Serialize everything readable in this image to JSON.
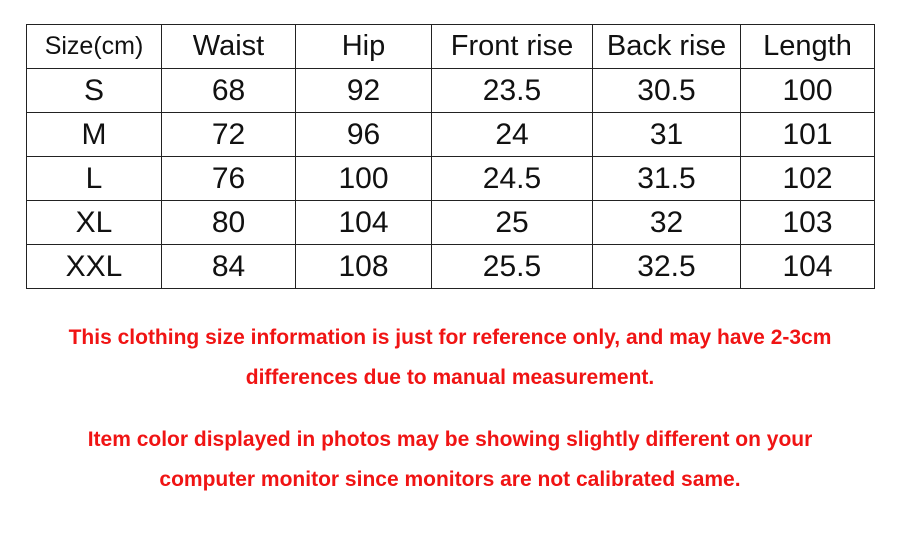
{
  "table": {
    "headers": [
      "Size(cm)",
      "Waist",
      "Hip",
      "Front rise",
      "Back rise",
      "Length"
    ],
    "rows": [
      [
        "S",
        "68",
        "92",
        "23.5",
        "30.5",
        "100"
      ],
      [
        "M",
        "72",
        "96",
        "24",
        "31",
        "101"
      ],
      [
        "L",
        "76",
        "100",
        "24.5",
        "31.5",
        "102"
      ],
      [
        "XL",
        "80",
        "104",
        "25",
        "32",
        "103"
      ],
      [
        "XXL",
        "84",
        "108",
        "25.5",
        "32.5",
        "104"
      ]
    ]
  },
  "notes": {
    "line1": "This clothing size information is just for reference only, and may have 2-3cm",
    "line2": "differences due to manual measurement.",
    "line3": "Item color displayed in photos may be showing slightly different on your",
    "line4": "computer monitor since monitors are not calibrated same."
  },
  "colors": {
    "note": "#f01414",
    "border": "#222222"
  }
}
